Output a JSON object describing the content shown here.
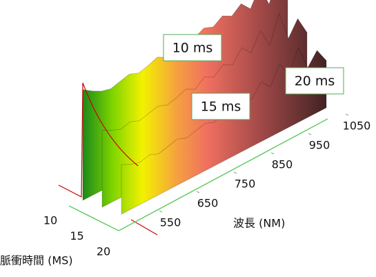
{
  "chart_data": {
    "type": "waterfall",
    "x_label": "波長 (NM)",
    "z_label": "脈衝時間 (MS)",
    "x": [
      500,
      525,
      550,
      575,
      600,
      625,
      650,
      675,
      700,
      725,
      750,
      775,
      800,
      825,
      850,
      875,
      900,
      925,
      950,
      975,
      1000,
      1025,
      1050
    ],
    "xlim": [
      500,
      1050
    ],
    "xticks": [
      550,
      650,
      750,
      850,
      950,
      1050
    ],
    "ylim": [
      0,
      100
    ],
    "zticks": [
      10,
      15,
      20
    ],
    "series": [
      {
        "name": "10 ms",
        "z": 10,
        "values": [
          89,
          84,
          80,
          78,
          80,
          82,
          79,
          81,
          84,
          80,
          83,
          86,
          84,
          88,
          85,
          90,
          86,
          92,
          84,
          98,
          80,
          100,
          75
        ]
      },
      {
        "name": "15 ms",
        "z": 15,
        "values": [
          62,
          58,
          55,
          57,
          54,
          56,
          58,
          55,
          57,
          60,
          56,
          62,
          58,
          64,
          60,
          70,
          62,
          76,
          60,
          82,
          58,
          70,
          55
        ]
      },
      {
        "name": "20 ms",
        "z": 20,
        "values": [
          40,
          36,
          34,
          36,
          33,
          35,
          37,
          34,
          36,
          38,
          35,
          40,
          37,
          42,
          38,
          48,
          40,
          55,
          42,
          60,
          40,
          50,
          38
        ]
      }
    ]
  }
}
